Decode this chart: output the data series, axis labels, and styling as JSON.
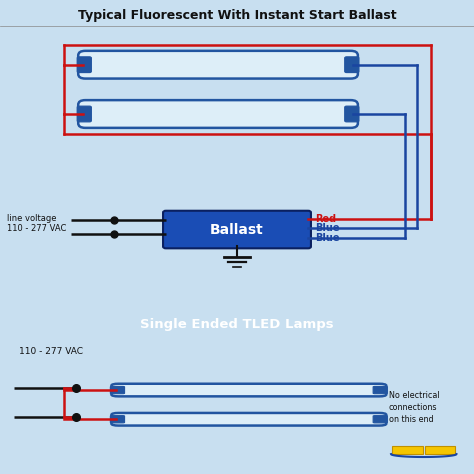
{
  "title_top": "Typical Fluorescent With Instant Start Ballast",
  "title_bottom": "Single Ended TLED Lamps",
  "bg_color": "#c8dff0",
  "tube_fill": "#ddeef8",
  "tube_outline": "#2255a0",
  "ballast_fill": "#1a4db5",
  "ballast_text": "Ballast",
  "ballast_text_color": "white",
  "red_wire": "#cc1111",
  "blue_wire": "#1a45a0",
  "black_wire": "#111111",
  "label_line_voltage": "line voltage\n110 - 277 VAC",
  "label_110_277": "110 - 277 VAC",
  "label_red": "Red",
  "label_blue1": "Blue",
  "label_blue2": "Blue",
  "label_no_elec": "No electrical\nconnections\non this end",
  "divider_color": "#111111",
  "title_color": "#111111",
  "ground_color": "#111111"
}
